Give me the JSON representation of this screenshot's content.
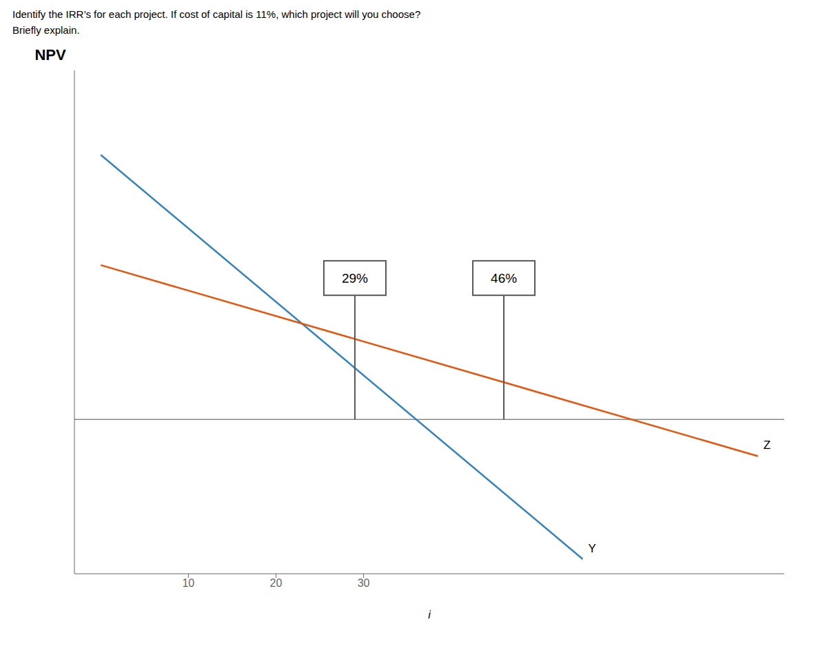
{
  "chart_data": {
    "type": "line",
    "title": "Identify the IRR’s for each project.  If cost of capital is 11%, which project will you choose?",
    "subtitle": "Briefly explain.",
    "xlabel": "i",
    "ylabel": "NPV",
    "xlim": [
      -3,
      78
    ],
    "ylim": [
      -42,
      95
    ],
    "xticks": [
      10,
      20,
      30
    ],
    "tick_labels": "x",
    "grid": false,
    "series": [
      {
        "name": "Y",
        "x": [
          0,
          55
        ],
        "values": [
          72,
          -38
        ]
      },
      {
        "name": "Z",
        "x": [
          0,
          75
        ],
        "values": [
          42,
          -10
        ]
      }
    ],
    "annotations": [
      {
        "text": "29%",
        "x": 29,
        "y": 0
      },
      {
        "text": "46%",
        "x": 46,
        "y": 0
      }
    ]
  }
}
